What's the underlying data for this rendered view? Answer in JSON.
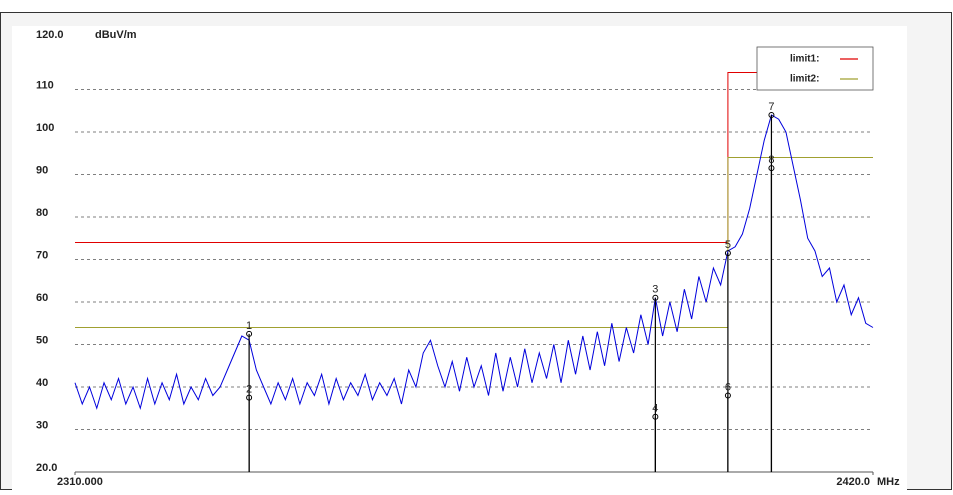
{
  "chart_data": {
    "type": "line",
    "y_unit": "dBuV/m",
    "x_unit": "MHz",
    "xlim": [
      2310,
      2420
    ],
    "xticks": [
      {
        "value": 2310,
        "label": "2310.000"
      },
      {
        "value": 2420,
        "label": "2420.0"
      }
    ],
    "ylim": [
      20,
      120
    ],
    "yticks": [
      {
        "value": 20,
        "label": "20.0"
      },
      30,
      40,
      50,
      60,
      70,
      80,
      90,
      100,
      110,
      {
        "value": 120,
        "label": "120.0"
      }
    ],
    "grid": true,
    "legend": "top-right",
    "x": [
      2310,
      2311,
      2312,
      2313,
      2314,
      2315,
      2316,
      2317,
      2318,
      2319,
      2320,
      2321,
      2322,
      2323,
      2324,
      2325,
      2326,
      2327,
      2328,
      2329,
      2330,
      2331,
      2332,
      2333,
      2334,
      2335,
      2336,
      2337,
      2338,
      2339,
      2340,
      2341,
      2342,
      2343,
      2344,
      2345,
      2346,
      2347,
      2348,
      2349,
      2350,
      2351,
      2352,
      2353,
      2354,
      2355,
      2356,
      2357,
      2358,
      2359,
      2360,
      2361,
      2362,
      2363,
      2364,
      2365,
      2366,
      2367,
      2368,
      2369,
      2370,
      2371,
      2372,
      2373,
      2374,
      2375,
      2376,
      2377,
      2378,
      2379,
      2380,
      2381,
      2382,
      2383,
      2384,
      2385,
      2386,
      2387,
      2388,
      2389,
      2390,
      2391,
      2392,
      2393,
      2394,
      2395,
      2396,
      2397,
      2398,
      2399,
      2400,
      2401,
      2402,
      2403,
      2404,
      2405,
      2406,
      2407,
      2408,
      2409,
      2410,
      2411,
      2412,
      2413,
      2414,
      2415,
      2416,
      2417,
      2418,
      2419,
      2420
    ],
    "series": [
      {
        "color": "#0000dd",
        "values": [
          41,
          36,
          40,
          35,
          41,
          37,
          42,
          36,
          40,
          35,
          42,
          36,
          41,
          37,
          43,
          36,
          40,
          37,
          42,
          38,
          40,
          44,
          48,
          52,
          51,
          44,
          40,
          36,
          41,
          37,
          42,
          36,
          41,
          38,
          43,
          36,
          42,
          37,
          41,
          38,
          43,
          37,
          41,
          38,
          42,
          36,
          44,
          40,
          48,
          51,
          45,
          40,
          46,
          39,
          47,
          40,
          45,
          38,
          48,
          39,
          47,
          40,
          49,
          41,
          48,
          42,
          50,
          41,
          51,
          43,
          52,
          44,
          53,
          45,
          55,
          46,
          54,
          48,
          57,
          50,
          61,
          52,
          60,
          53,
          63,
          56,
          66,
          60,
          68,
          64,
          72,
          73,
          76,
          82,
          90,
          98,
          104,
          103,
          100,
          92,
          84,
          75,
          72,
          66,
          68,
          60,
          64,
          57,
          61,
          55,
          54
        ]
      }
    ],
    "limits": [
      {
        "name": "limit1:",
        "color": "#e00000",
        "x": [
          2310,
          2400,
          2400,
          2420
        ],
        "values": [
          74,
          74,
          114,
          114
        ]
      },
      {
        "name": "limit2:",
        "color": "#a0a030",
        "x": [
          2310,
          2400,
          2400,
          2420
        ],
        "values": [
          54,
          54,
          94,
          94
        ]
      }
    ],
    "markers": {
      "labels": [
        "1",
        "2",
        "3",
        "4",
        "5",
        "6",
        "7",
        "8"
      ],
      "x": [
        2334,
        2334,
        2390,
        2390,
        2400,
        2400,
        2406,
        2406
      ],
      "values": [
        52.5,
        37.5,
        61,
        33,
        71.5,
        38,
        104,
        91.5
      ]
    }
  }
}
